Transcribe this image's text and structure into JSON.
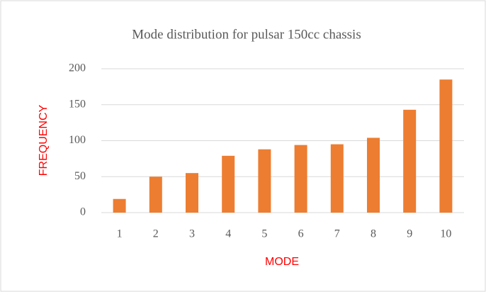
{
  "chart_data": {
    "type": "bar",
    "title": "Mode distribution for pulsar 150cc chassis",
    "xlabel": "MODE",
    "ylabel": "FREQUENCY",
    "categories": [
      "1",
      "2",
      "3",
      "4",
      "5",
      "6",
      "7",
      "8",
      "9",
      "10"
    ],
    "values": [
      19,
      50,
      55,
      79,
      88,
      94,
      95,
      104,
      143,
      185
    ],
    "color": "#ed7d31",
    "ylim": [
      0,
      200
    ],
    "yticks": [
      0,
      50,
      100,
      150,
      200
    ],
    "grid": true
  }
}
